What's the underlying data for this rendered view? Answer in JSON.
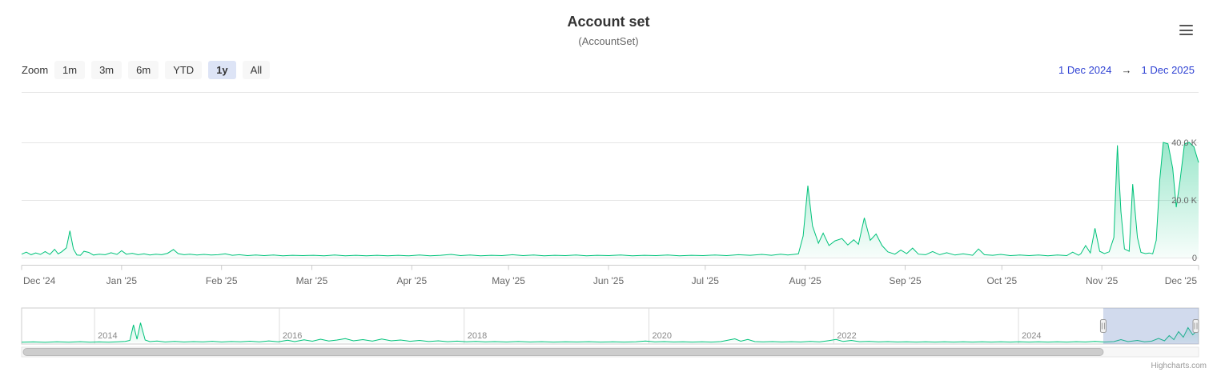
{
  "header": {
    "title": "Account set",
    "subtitle": "(AccountSet)"
  },
  "range_selector": {
    "zoom_label": "Zoom",
    "buttons": [
      {
        "label": "1m",
        "selected": false
      },
      {
        "label": "3m",
        "selected": false
      },
      {
        "label": "6m",
        "selected": false
      },
      {
        "label": "YTD",
        "selected": false
      },
      {
        "label": "1y",
        "selected": true
      },
      {
        "label": "All",
        "selected": false
      }
    ],
    "from": "1 Dec 2024",
    "arrow": "→",
    "to": "1 Dec 2025"
  },
  "credits": "Highcharts.com",
  "colors": {
    "series_green": "#00c27a",
    "navigator_mask": "rgba(102,133,194,0.3)",
    "link_blue": "#2e41d3",
    "button_bg": "#f7f7f7",
    "button_selected_bg": "#dde4f6",
    "axis_label": "#666666",
    "grid_line": "#e6e6e6",
    "axis_line": "#cccccc",
    "scrollbar_thumb": "#cdcdcd"
  },
  "chart_data": {
    "type": "area",
    "title": "Account set",
    "subtitle": "(AccountSet)",
    "legend": "off",
    "yaxis": {
      "position": "right",
      "unit": "K",
      "ticks": [
        {
          "value": 0,
          "label": "0"
        },
        {
          "value": 20,
          "label": "20.0 K"
        },
        {
          "value": 40,
          "label": "40.0 K"
        }
      ],
      "range_shown": [
        0,
        57
      ]
    },
    "xaxis": {
      "labels": [
        "Dec '24",
        "Jan '25",
        "Feb '25",
        "Mar '25",
        "Apr '25",
        "May '25",
        "Jun '25",
        "Jul '25",
        "Aug '25",
        "Sep '25",
        "Oct '25",
        "Nov '25",
        "Dec '25"
      ],
      "tick_day_offsets": [
        0,
        31,
        62,
        90,
        121,
        151,
        182,
        212,
        243,
        274,
        304,
        335,
        365
      ],
      "range": [
        "1 Dec 2024",
        "1 Dec 2025"
      ]
    },
    "series": [
      {
        "name": "AccountSet",
        "color": "#00c27a",
        "value_unit": "K",
        "points": [
          [
            0.0,
            1.2
          ],
          [
            0.004,
            1.9
          ],
          [
            0.008,
            1.0
          ],
          [
            0.012,
            1.6
          ],
          [
            0.016,
            1.1
          ],
          [
            0.02,
            2.1
          ],
          [
            0.024,
            1.1
          ],
          [
            0.028,
            2.9
          ],
          [
            0.031,
            1.3
          ],
          [
            0.034,
            2.0
          ],
          [
            0.038,
            3.4
          ],
          [
            0.041,
            9.3
          ],
          [
            0.044,
            3.0
          ],
          [
            0.047,
            0.9
          ],
          [
            0.05,
            0.8
          ],
          [
            0.053,
            2.2
          ],
          [
            0.057,
            1.8
          ],
          [
            0.061,
            0.9
          ],
          [
            0.066,
            1.2
          ],
          [
            0.071,
            1.0
          ],
          [
            0.076,
            1.7
          ],
          [
            0.081,
            1.1
          ],
          [
            0.085,
            2.4
          ],
          [
            0.089,
            1.2
          ],
          [
            0.094,
            1.5
          ],
          [
            0.099,
            1.0
          ],
          [
            0.104,
            1.3
          ],
          [
            0.109,
            0.9
          ],
          [
            0.114,
            1.2
          ],
          [
            0.119,
            1.0
          ],
          [
            0.124,
            1.5
          ],
          [
            0.129,
            2.8
          ],
          [
            0.133,
            1.4
          ],
          [
            0.138,
            1.0
          ],
          [
            0.143,
            1.2
          ],
          [
            0.149,
            0.9
          ],
          [
            0.155,
            1.1
          ],
          [
            0.161,
            0.9
          ],
          [
            0.167,
            1.0
          ],
          [
            0.173,
            1.3
          ],
          [
            0.179,
            0.8
          ],
          [
            0.185,
            1.0
          ],
          [
            0.192,
            0.7
          ],
          [
            0.199,
            0.9
          ],
          [
            0.206,
            0.7
          ],
          [
            0.214,
            0.9
          ],
          [
            0.222,
            0.6
          ],
          [
            0.23,
            0.8
          ],
          [
            0.239,
            0.7
          ],
          [
            0.248,
            0.8
          ],
          [
            0.257,
            0.6
          ],
          [
            0.266,
            0.9
          ],
          [
            0.275,
            0.6
          ],
          [
            0.284,
            0.8
          ],
          [
            0.293,
            0.6
          ],
          [
            0.302,
            0.8
          ],
          [
            0.311,
            0.6
          ],
          [
            0.32,
            0.8
          ],
          [
            0.329,
            0.6
          ],
          [
            0.338,
            0.9
          ],
          [
            0.347,
            0.6
          ],
          [
            0.356,
            0.8
          ],
          [
            0.365,
            1.1
          ],
          [
            0.373,
            0.7
          ],
          [
            0.381,
            0.9
          ],
          [
            0.39,
            0.6
          ],
          [
            0.399,
            0.8
          ],
          [
            0.408,
            0.7
          ],
          [
            0.417,
            1.0
          ],
          [
            0.426,
            0.7
          ],
          [
            0.435,
            0.9
          ],
          [
            0.444,
            0.6
          ],
          [
            0.453,
            0.8
          ],
          [
            0.462,
            0.7
          ],
          [
            0.471,
            0.9
          ],
          [
            0.48,
            0.6
          ],
          [
            0.489,
            0.8
          ],
          [
            0.499,
            0.7
          ],
          [
            0.509,
            0.9
          ],
          [
            0.519,
            0.6
          ],
          [
            0.529,
            0.8
          ],
          [
            0.539,
            0.7
          ],
          [
            0.549,
            0.9
          ],
          [
            0.559,
            0.6
          ],
          [
            0.569,
            0.8
          ],
          [
            0.579,
            0.7
          ],
          [
            0.589,
            0.9
          ],
          [
            0.599,
            0.7
          ],
          [
            0.609,
            1.0
          ],
          [
            0.619,
            0.8
          ],
          [
            0.629,
            1.1
          ],
          [
            0.637,
            0.8
          ],
          [
            0.645,
            1.2
          ],
          [
            0.651,
            0.9
          ],
          [
            0.656,
            1.1
          ],
          [
            0.66,
            1.3
          ],
          [
            0.664,
            7.5
          ],
          [
            0.668,
            25.0
          ],
          [
            0.672,
            11.0
          ],
          [
            0.677,
            5.0
          ],
          [
            0.681,
            8.5
          ],
          [
            0.686,
            4.2
          ],
          [
            0.691,
            5.8
          ],
          [
            0.697,
            6.6
          ],
          [
            0.702,
            4.4
          ],
          [
            0.707,
            6.2
          ],
          [
            0.711,
            4.6
          ],
          [
            0.716,
            13.8
          ],
          [
            0.721,
            6.0
          ],
          [
            0.726,
            8.2
          ],
          [
            0.731,
            4.2
          ],
          [
            0.736,
            2.0
          ],
          [
            0.742,
            1.2
          ],
          [
            0.747,
            2.6
          ],
          [
            0.752,
            1.4
          ],
          [
            0.757,
            3.3
          ],
          [
            0.762,
            1.2
          ],
          [
            0.768,
            1.0
          ],
          [
            0.774,
            2.1
          ],
          [
            0.78,
            1.0
          ],
          [
            0.786,
            1.7
          ],
          [
            0.793,
            0.9
          ],
          [
            0.8,
            1.3
          ],
          [
            0.808,
            0.8
          ],
          [
            0.813,
            3.0
          ],
          [
            0.818,
            1.0
          ],
          [
            0.825,
            0.8
          ],
          [
            0.832,
            1.1
          ],
          [
            0.84,
            0.7
          ],
          [
            0.848,
            0.9
          ],
          [
            0.856,
            0.7
          ],
          [
            0.864,
            0.9
          ],
          [
            0.872,
            0.6
          ],
          [
            0.88,
            0.9
          ],
          [
            0.888,
            0.7
          ],
          [
            0.893,
            1.9
          ],
          [
            0.898,
            0.8
          ],
          [
            0.9,
            1.4
          ],
          [
            0.904,
            4.2
          ],
          [
            0.908,
            1.6
          ],
          [
            0.912,
            10.2
          ],
          [
            0.916,
            2.2
          ],
          [
            0.92,
            1.4
          ],
          [
            0.924,
            2.0
          ],
          [
            0.928,
            7.0
          ],
          [
            0.931,
            39.0
          ],
          [
            0.934,
            16.0
          ],
          [
            0.937,
            3.0
          ],
          [
            0.941,
            2.2
          ],
          [
            0.944,
            25.5
          ],
          [
            0.948,
            7.0
          ],
          [
            0.951,
            1.8
          ],
          [
            0.955,
            1.4
          ],
          [
            0.958,
            1.6
          ],
          [
            0.961,
            1.3
          ],
          [
            0.964,
            6.0
          ],
          [
            0.967,
            27.0
          ],
          [
            0.97,
            40.0
          ],
          [
            0.974,
            39.5
          ],
          [
            0.978,
            31.0
          ],
          [
            0.981,
            17.5
          ],
          [
            0.984,
            26.0
          ],
          [
            0.988,
            39.5
          ],
          [
            0.992,
            40.0
          ],
          [
            0.996,
            38.5
          ],
          [
            1.0,
            33.0
          ]
        ]
      }
    ],
    "navigator": {
      "year_labels": [
        {
          "label": "2014",
          "f": 0.062
        },
        {
          "label": "2016",
          "f": 0.219
        },
        {
          "label": "2018",
          "f": 0.376
        },
        {
          "label": "2020",
          "f": 0.533
        },
        {
          "label": "2022",
          "f": 0.69
        },
        {
          "label": "2024",
          "f": 0.847
        }
      ],
      "selected_from_f": 0.919,
      "selected_to_f": 1.0,
      "points": [
        [
          0.0,
          1.5
        ],
        [
          0.01,
          2.2
        ],
        [
          0.02,
          1.2
        ],
        [
          0.03,
          2.5
        ],
        [
          0.04,
          1.4
        ],
        [
          0.05,
          2.8
        ],
        [
          0.058,
          1.5
        ],
        [
          0.066,
          2.2
        ],
        [
          0.074,
          1.6
        ],
        [
          0.082,
          2.5
        ],
        [
          0.088,
          3.5
        ],
        [
          0.092,
          6.0
        ],
        [
          0.095,
          45.0
        ],
        [
          0.098,
          9.0
        ],
        [
          0.101,
          50.0
        ],
        [
          0.105,
          7.0
        ],
        [
          0.109,
          3.0
        ],
        [
          0.115,
          4.5
        ],
        [
          0.122,
          2.0
        ],
        [
          0.13,
          3.5
        ],
        [
          0.138,
          2.0
        ],
        [
          0.146,
          3.0
        ],
        [
          0.154,
          2.2
        ],
        [
          0.162,
          3.8
        ],
        [
          0.17,
          2.0
        ],
        [
          0.178,
          3.2
        ],
        [
          0.186,
          2.4
        ],
        [
          0.194,
          4.0
        ],
        [
          0.202,
          2.2
        ],
        [
          0.21,
          4.8
        ],
        [
          0.218,
          2.6
        ],
        [
          0.226,
          6.5
        ],
        [
          0.232,
          3.0
        ],
        [
          0.24,
          7.5
        ],
        [
          0.247,
          4.0
        ],
        [
          0.254,
          9.0
        ],
        [
          0.261,
          4.5
        ],
        [
          0.268,
          7.0
        ],
        [
          0.275,
          10.5
        ],
        [
          0.282,
          5.0
        ],
        [
          0.29,
          8.0
        ],
        [
          0.298,
          4.2
        ],
        [
          0.306,
          9.5
        ],
        [
          0.314,
          5.0
        ],
        [
          0.322,
          7.0
        ],
        [
          0.33,
          3.8
        ],
        [
          0.338,
          6.0
        ],
        [
          0.346,
          3.2
        ],
        [
          0.354,
          5.0
        ],
        [
          0.362,
          2.8
        ],
        [
          0.37,
          4.2
        ],
        [
          0.378,
          2.4
        ],
        [
          0.386,
          3.6
        ],
        [
          0.394,
          2.2
        ],
        [
          0.402,
          3.0
        ],
        [
          0.412,
          2.0
        ],
        [
          0.422,
          3.2
        ],
        [
          0.432,
          2.0
        ],
        [
          0.442,
          2.8
        ],
        [
          0.452,
          1.8
        ],
        [
          0.462,
          2.6
        ],
        [
          0.472,
          2.0
        ],
        [
          0.482,
          2.8
        ],
        [
          0.492,
          1.8
        ],
        [
          0.502,
          2.4
        ],
        [
          0.512,
          1.8
        ],
        [
          0.522,
          2.6
        ],
        [
          0.53,
          4.5
        ],
        [
          0.538,
          2.2
        ],
        [
          0.546,
          3.0
        ],
        [
          0.554,
          2.0
        ],
        [
          0.562,
          2.6
        ],
        [
          0.57,
          1.8
        ],
        [
          0.578,
          2.4
        ],
        [
          0.586,
          1.8
        ],
        [
          0.594,
          3.0
        ],
        [
          0.6,
          6.5
        ],
        [
          0.606,
          10.0
        ],
        [
          0.611,
          4.0
        ],
        [
          0.617,
          8.5
        ],
        [
          0.623,
          3.0
        ],
        [
          0.63,
          2.2
        ],
        [
          0.638,
          3.0
        ],
        [
          0.646,
          2.0
        ],
        [
          0.654,
          2.8
        ],
        [
          0.662,
          2.0
        ],
        [
          0.67,
          3.5
        ],
        [
          0.678,
          2.2
        ],
        [
          0.686,
          5.5
        ],
        [
          0.692,
          8.5
        ],
        [
          0.698,
          3.5
        ],
        [
          0.705,
          6.0
        ],
        [
          0.712,
          2.8
        ],
        [
          0.72,
          3.6
        ],
        [
          0.728,
          2.2
        ],
        [
          0.736,
          3.0
        ],
        [
          0.744,
          2.0
        ],
        [
          0.752,
          2.6
        ],
        [
          0.76,
          1.8
        ],
        [
          0.768,
          2.4
        ],
        [
          0.776,
          1.8
        ],
        [
          0.784,
          2.6
        ],
        [
          0.792,
          1.8
        ],
        [
          0.8,
          2.4
        ],
        [
          0.808,
          1.8
        ],
        [
          0.816,
          2.6
        ],
        [
          0.824,
          1.8
        ],
        [
          0.832,
          2.4
        ],
        [
          0.84,
          1.8
        ],
        [
          0.848,
          2.6
        ],
        [
          0.856,
          1.8
        ],
        [
          0.864,
          2.4
        ],
        [
          0.872,
          1.8
        ],
        [
          0.88,
          2.6
        ],
        [
          0.888,
          1.8
        ],
        [
          0.896,
          2.8
        ],
        [
          0.904,
          2.0
        ],
        [
          0.912,
          3.5
        ],
        [
          0.92,
          2.0
        ],
        [
          0.928,
          3.0
        ],
        [
          0.934,
          8.0
        ],
        [
          0.94,
          3.0
        ],
        [
          0.948,
          6.0
        ],
        [
          0.954,
          2.5
        ],
        [
          0.96,
          4.0
        ],
        [
          0.966,
          11.0
        ],
        [
          0.971,
          5.0
        ],
        [
          0.975,
          18.0
        ],
        [
          0.979,
          8.0
        ],
        [
          0.983,
          28.0
        ],
        [
          0.987,
          14.0
        ],
        [
          0.991,
          38.0
        ],
        [
          0.995,
          20.0
        ],
        [
          1.0,
          34.0
        ]
      ]
    },
    "scrollbar": {
      "thumb_from_f": 0.0,
      "thumb_to_f": 0.919
    }
  }
}
